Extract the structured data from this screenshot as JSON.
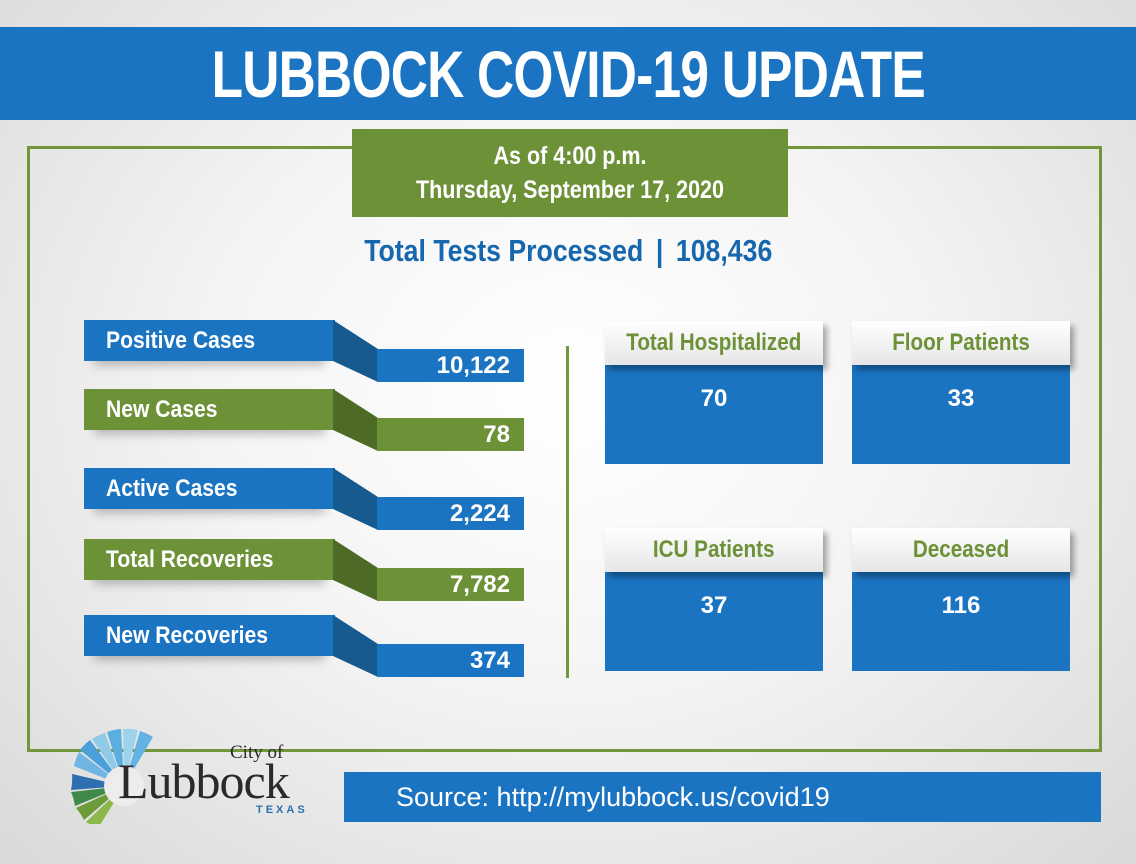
{
  "header": {
    "title": "LUBBOCK COVID-19 UPDATE"
  },
  "as_of": {
    "line1": "As of 4:00 p.m.",
    "line2": "Thursday, September 17, 2020"
  },
  "tests": {
    "label": "Total Tests Processed",
    "separator": "|",
    "value": "108,436"
  },
  "stats": [
    {
      "label": "Positive Cases",
      "value": "10,122",
      "color": "#1a74c2"
    },
    {
      "label": "New Cases",
      "value": "78",
      "color": "#6d9137"
    },
    {
      "label": "Active Cases",
      "value": "2,224",
      "color": "#1a74c2"
    },
    {
      "label": "Total Recoveries",
      "value": "7,782",
      "color": "#6d9137"
    },
    {
      "label": "New Recoveries",
      "value": "374",
      "color": "#1a74c2"
    }
  ],
  "hospital": [
    {
      "label": "Total Hospitalized",
      "value": "70"
    },
    {
      "label": "Floor Patients",
      "value": "33"
    },
    {
      "label": "ICU Patients",
      "value": "37"
    },
    {
      "label": "Deceased",
      "value": "116"
    }
  ],
  "logo": {
    "city_of": "City of",
    "name": "Lubbock",
    "state": "TEXAS"
  },
  "footer": {
    "source": "Source:  http://mylubbock.us/covid19"
  },
  "colors": {
    "blue": "#1a74c2",
    "green": "#6d9137",
    "frame": "#72963a"
  }
}
